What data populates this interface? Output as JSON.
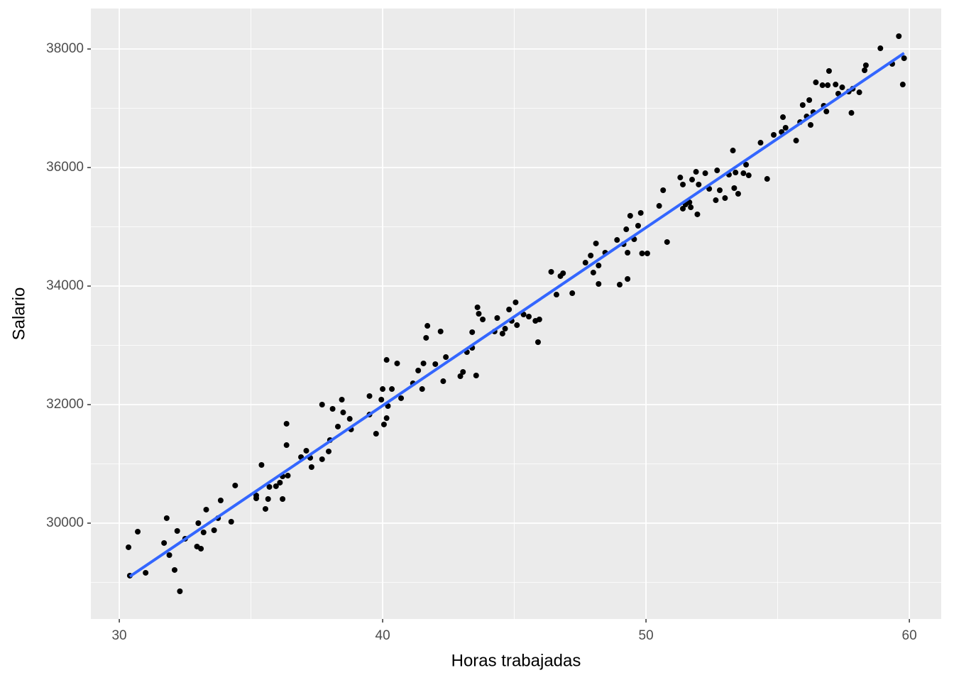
{
  "chart_data": {
    "type": "scatter",
    "x_label": "Horas trabajadas",
    "y_label": "Salario",
    "xlim": [
      28.92,
      61.21
    ],
    "ylim": [
      28383,
      38683
    ],
    "xticks": [
      30,
      40,
      50,
      60
    ],
    "yticks": [
      30000,
      32000,
      34000,
      36000,
      38000
    ],
    "xminor": [
      35,
      45,
      55
    ],
    "yminor": [
      29000,
      31000,
      33000,
      35000,
      37000
    ],
    "grid": true,
    "color": "#000000",
    "trend": {
      "x": [
        30.4,
        59.8
      ],
      "y": [
        29100,
        37930
      ],
      "color": "#3366ff"
    },
    "x": [
      30.35,
      30.4,
      30.7,
      31.0,
      31.7,
      31.8,
      31.9,
      32.1,
      32.2,
      32.3,
      32.5,
      32.95,
      33.0,
      33.1,
      33.2,
      33.3,
      33.6,
      33.75,
      33.85,
      34.25,
      34.4,
      35.2,
      35.2,
      35.4,
      35.55,
      35.65,
      35.7,
      35.95,
      36.1,
      36.2,
      36.2,
      36.35,
      36.35,
      36.4,
      36.9,
      37.1,
      37.25,
      37.3,
      37.7,
      37.7,
      37.95,
      38.0,
      38.1,
      38.3,
      38.45,
      38.5,
      38.75,
      38.8,
      39.5,
      39.5,
      39.75,
      39.95,
      40.0,
      40.05,
      40.15,
      40.15,
      40.2,
      40.35,
      40.55,
      40.7,
      41.15,
      41.35,
      41.5,
      41.55,
      41.65,
      41.7,
      42.0,
      42.2,
      42.3,
      42.4,
      42.95,
      43.05,
      43.2,
      43.4,
      43.4,
      43.55,
      43.6,
      43.65,
      43.8,
      44.25,
      44.35,
      44.55,
      44.65,
      44.8,
      44.9,
      45.05,
      45.1,
      45.35,
      45.55,
      45.8,
      45.9,
      45.95,
      46.4,
      46.6,
      46.75,
      46.85,
      47.2,
      47.7,
      47.9,
      48.0,
      48.1,
      48.2,
      48.2,
      48.45,
      48.9,
      49.0,
      49.15,
      49.25,
      49.3,
      49.3,
      49.4,
      49.55,
      49.7,
      49.8,
      49.85,
      50.05,
      50.5,
      50.65,
      50.8,
      51.3,
      51.4,
      51.4,
      51.5,
      51.65,
      51.7,
      51.75,
      51.9,
      51.95,
      52.0,
      52.25,
      52.4,
      52.65,
      52.7,
      52.8,
      53.0,
      53.15,
      53.3,
      53.35,
      53.4,
      53.5,
      53.7,
      53.8,
      53.9,
      54.35,
      54.6,
      54.85,
      55.15,
      55.2,
      55.3,
      55.7,
      55.85,
      55.95,
      56.1,
      56.2,
      56.25,
      56.35,
      56.45,
      56.7,
      56.75,
      56.85,
      56.9,
      56.95,
      57.2,
      57.3,
      57.45,
      57.7,
      57.8,
      57.85,
      58.1,
      58.3,
      58.35,
      58.9,
      59.35,
      59.6,
      59.75,
      59.8
    ],
    "y": [
      29593,
      29114,
      29856,
      29162,
      29665,
      30084,
      29461,
      29210,
      29868,
      28850,
      29737,
      29605,
      30000,
      29569,
      29844,
      30228,
      29880,
      30084,
      30383,
      30024,
      30635,
      30467,
      30419,
      30982,
      30240,
      30407,
      30611,
      30623,
      30683,
      30407,
      30790,
      31317,
      31677,
      30802,
      31114,
      31222,
      31102,
      30946,
      31078,
      32000,
      31210,
      31401,
      31928,
      31629,
      32084,
      31868,
      31760,
      31581,
      31832,
      32144,
      31509,
      32084,
      32263,
      31665,
      31772,
      32754,
      31976,
      32263,
      32695,
      32108,
      32359,
      32575,
      32263,
      32695,
      33126,
      33329,
      32683,
      33234,
      32395,
      32802,
      32479,
      32551,
      32886,
      33222,
      32958,
      32491,
      33641,
      33533,
      33437,
      33234,
      33461,
      33198,
      33281,
      33605,
      33413,
      33725,
      33341,
      33521,
      33485,
      33413,
      33054,
      33437,
      34240,
      33856,
      34168,
      34216,
      33880,
      34395,
      34515,
      34228,
      34719,
      34036,
      34347,
      34563,
      34778,
      34024,
      34707,
      34958,
      34563,
      34120,
      35186,
      34790,
      35018,
      35234,
      34551,
      34551,
      35353,
      35617,
      34743,
      35832,
      35713,
      35306,
      35377,
      35413,
      35329,
      35796,
      35928,
      35210,
      35713,
      35904,
      35641,
      35449,
      35952,
      35617,
      35485,
      35880,
      36287,
      35653,
      35916,
      35557,
      35904,
      36048,
      35868,
      36419,
      35808,
      36551,
      36599,
      36850,
      36671,
      36455,
      36766,
      37054,
      36862,
      37138,
      36719,
      36934,
      37437,
      37389,
      37042,
      36946,
      37389,
      37629,
      37401,
      37246,
      37353,
      37281,
      36922,
      37329,
      37269,
      37641,
      37725,
      38012,
      37749,
      38216,
      37401,
      37844
    ]
  }
}
